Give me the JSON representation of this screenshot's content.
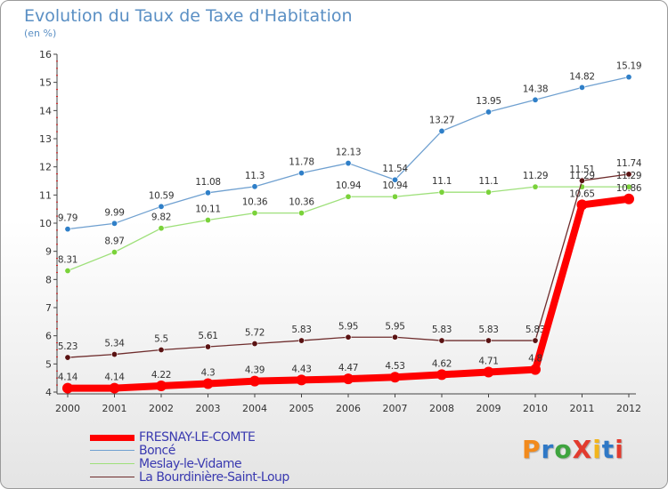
{
  "title": "Evolution du Taux de Taxe d'Habitation",
  "subtitle": "(en %)",
  "logo": {
    "text": "ProXiti",
    "colors": [
      "#f28a1c",
      "#2f78c6",
      "#3fa43f",
      "#e23b2e",
      "#f2b51c",
      "#2f78c6",
      "#e23b2e"
    ]
  },
  "chart_data": {
    "type": "line",
    "title": "Evolution du Taux de Taxe d'Habitation",
    "ylabel": "(en %)",
    "xlabel": "",
    "ylim": [
      4,
      16
    ],
    "yticks": [
      4,
      5,
      6,
      7,
      8,
      9,
      10,
      11,
      12,
      13,
      14,
      15,
      16
    ],
    "grid": false,
    "legend_position": "bottom-left",
    "x": [
      "2000",
      "2001",
      "2002",
      "2003",
      "2004",
      "2005",
      "2006",
      "2007",
      "2008",
      "2009",
      "2010",
      "2011",
      "2012"
    ],
    "series": [
      {
        "name": "FRESNAY-LE-COMTE",
        "color": "#ff0000",
        "marker": "#ff0000",
        "values": [
          4.14,
          4.14,
          4.22,
          4.3,
          4.39,
          4.43,
          4.47,
          4.53,
          4.62,
          4.71,
          4.8,
          10.65,
          10.86
        ],
        "labels": [
          "4.14",
          "4.14",
          "4.22",
          "4.3",
          "4.39",
          "4.43",
          "4.47",
          "4.53",
          "4.62",
          "4.71",
          "4.8",
          "10.65",
          "10.86"
        ]
      },
      {
        "name": "Boncé",
        "color": "#6fa0d0",
        "marker": "#2f7fc8",
        "values": [
          9.79,
          9.99,
          10.59,
          11.08,
          11.3,
          11.78,
          12.13,
          11.54,
          13.27,
          13.95,
          14.38,
          14.82,
          15.19
        ],
        "labels": [
          "9.79",
          "9.99",
          "10.59",
          "11.08",
          "11.3",
          "11.78",
          "12.13",
          "11.54",
          "13.27",
          "13.95",
          "14.38",
          "14.82",
          "15.19"
        ]
      },
      {
        "name": "Meslay-le-Vidame",
        "color": "#9ee07a",
        "marker": "#7ad23a",
        "values": [
          8.31,
          8.97,
          9.82,
          10.11,
          10.36,
          10.36,
          10.94,
          10.94,
          11.1,
          11.1,
          11.29,
          11.29,
          11.29
        ],
        "labels": [
          "8.31",
          "8.97",
          "9.82",
          "10.11",
          "10.36",
          "10.36",
          "10.94",
          "10.94",
          "11.1",
          "11.1",
          "11.29",
          "11.29",
          "11.29"
        ]
      },
      {
        "name": "La Bourdinière-Saint-Loup",
        "color": "#6e2c2c",
        "marker": "#5a1212",
        "values": [
          5.23,
          5.34,
          5.5,
          5.61,
          5.72,
          5.83,
          5.95,
          5.95,
          5.83,
          5.83,
          5.83,
          11.51,
          11.74
        ],
        "labels": [
          "5.23",
          "5.34",
          "5.5",
          "5.61",
          "5.72",
          "5.83",
          "5.95",
          "5.95",
          "5.83",
          "5.83",
          "5.83",
          "11.51",
          "11.74"
        ]
      }
    ]
  }
}
